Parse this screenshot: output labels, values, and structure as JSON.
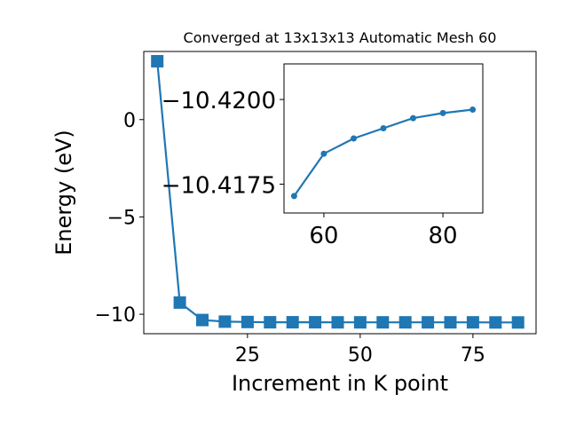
{
  "chart_data": [
    {
      "id": "main",
      "type": "line",
      "title": "Converged at 13x13x13 Automatic Mesh 60",
      "xlabel": "Increment in K point",
      "ylabel": "Energy (eV)",
      "xlim": [
        2.0,
        89.0
      ],
      "ylim": [
        -11.0,
        3.5
      ],
      "xticks": [
        25,
        50,
        75
      ],
      "yticks": [
        0,
        -5,
        -10
      ],
      "marker": "square",
      "color": "#1f77b4",
      "series": [
        {
          "x": [
            5,
            10,
            15,
            20,
            25,
            30,
            35,
            40,
            45,
            50,
            55,
            60,
            65,
            70,
            75,
            80,
            85
          ],
          "y": [
            3.0,
            -9.4,
            -10.3,
            -10.38,
            -10.4,
            -10.41,
            -10.412,
            -10.414,
            -10.415,
            -10.416,
            -10.4165,
            -10.417,
            -10.4175,
            -10.418,
            -10.4185,
            -10.419,
            -10.4195
          ]
        }
      ]
    },
    {
      "id": "inset",
      "type": "line",
      "xlim": [
        53.3,
        86.7
      ],
      "ylim": [
        -10.41665,
        -10.42105
      ],
      "xticks": [
        60,
        80
      ],
      "yticks": [
        -10.42,
        -10.4175
      ],
      "ytick_labels": [
        "−10.4200",
        "−10.4175"
      ],
      "marker": "circle",
      "color": "#1f77b4",
      "series": [
        {
          "x": [
            55,
            60,
            65,
            70,
            75,
            80,
            85
          ],
          "y": [
            -10.41715,
            -10.4184,
            -10.41885,
            -10.41915,
            -10.41945,
            -10.4196,
            -10.4197
          ]
        }
      ]
    }
  ]
}
